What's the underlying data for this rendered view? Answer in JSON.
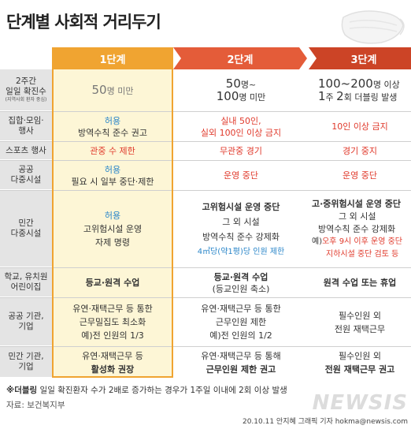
{
  "title": "단계별 사회적 거리두기",
  "stages": [
    "1단계",
    "2단계",
    "3단계"
  ],
  "rows": {
    "r0": {
      "label": [
        "2주간",
        "일일 확진수"
      ],
      "label_tiny": "(지역사회 환자 중심)",
      "s1": {
        "num": "50",
        "unit": "명 미만"
      },
      "s2": {
        "l1_num": "50",
        "l1_unit": "명~",
        "l2_num": "100",
        "l2_unit": "명 미만"
      },
      "s3": {
        "l1_num": "100~200",
        "l1_unit": "명 이상",
        "l2_a": "1",
        "l2_b": "주 ",
        "l2_c": "2",
        "l2_d": "회 더블링 발생"
      }
    },
    "r1": {
      "label": [
        "집합·모임·",
        "행사"
      ],
      "s1": [
        "허용",
        "방역수칙 준수 권고"
      ],
      "s2": [
        "실내 50인,",
        "실외 100인 이상 금지"
      ],
      "s3": "10인 이상 금지"
    },
    "r2": {
      "label": [
        "스포츠 행사"
      ],
      "s1": "관중 수 제한",
      "s2": "무관중 경기",
      "s3": "경기 중지"
    },
    "r3": {
      "label": [
        "공공",
        "다중시설"
      ],
      "s1": [
        "허용",
        "필요 시 일부 중단·제한"
      ],
      "s2": "운영 중단",
      "s3": "운영 중단"
    },
    "r4": {
      "label": [
        "민간",
        "다중시설"
      ],
      "s1": [
        "허용",
        "고위험시설 운영",
        "자제 명령"
      ],
      "s2": [
        "고위험시설 운영 중단",
        "그 외 시설",
        "방역수칙 준수 강제화",
        "4㎡당(약1평)당 인원 제한"
      ],
      "s3": [
        "고·중위험시설 운영 중단",
        "그 외 시설",
        "방역수칙 준수 강제화",
        "예)",
        "오후 9시 이후 운영 중단",
        "지하시설 중단 검토 등"
      ]
    },
    "r5": {
      "label": [
        "학교, 유치원",
        "어린이집"
      ],
      "s1": "등교·원격 수업",
      "s2": [
        "등교·원격 수업",
        "(등교인원 축소)"
      ],
      "s3": "원격 수업 또는 휴업"
    },
    "r6": {
      "label": [
        "공공 기관,",
        "기업"
      ],
      "s1": [
        "유연·재택근무 등 통한",
        "근무밀집도 최소화",
        "예)전 인원의 1/3"
      ],
      "s2": [
        "유연·재택근무 등 통한",
        "근무인원 제한",
        "예)전 인원의 1/2"
      ],
      "s3": [
        "필수인원 외",
        "전원 재택근무"
      ]
    },
    "r7": {
      "label": [
        "민간 기관,",
        "기업"
      ],
      "s1": [
        "유연·재택근무 등",
        "활성화 권장"
      ],
      "s2": [
        "유연·재택근무 등 통해",
        "근무인원 제한 권고"
      ],
      "s3": [
        "필수인원 외",
        "전원 재택근무 권고"
      ]
    }
  },
  "note_head": "※더블링",
  "note_text": " 일일 확진환자 수가 2배로 증가하는 경우가 1주일 이내에 2회 이상 발생",
  "source": "자료: 보건복지부",
  "watermark": "NEWSIS",
  "credit": "20.10.11 안지혜 그래픽 기자 hokma@newsis.com",
  "colors": {
    "stage1": "#f0a431",
    "stage2": "#e45c39",
    "stage3": "#cc4426",
    "highlight_red": "#e0392b",
    "highlight_blue": "#2a86c9"
  }
}
